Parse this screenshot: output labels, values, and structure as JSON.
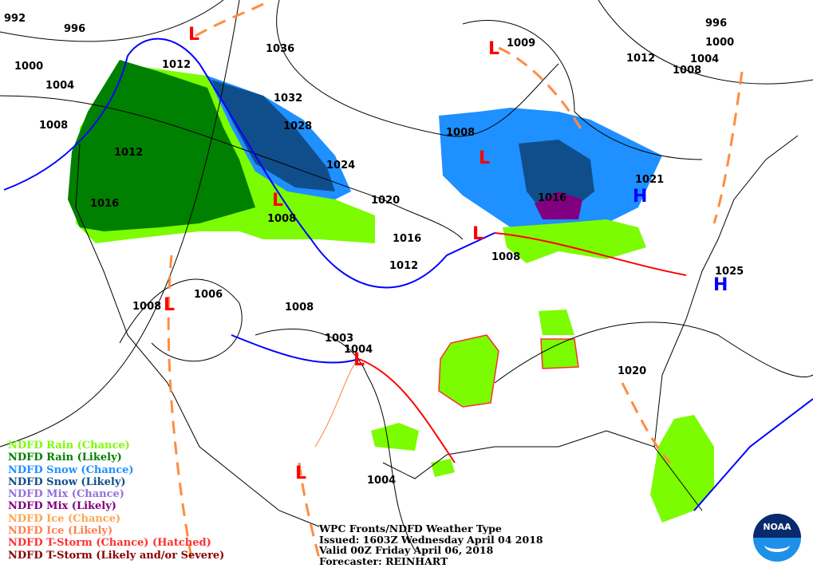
{
  "map_title": "WPC Fronts/NDFD Weather Type",
  "issued": "Issued: 1603Z Wednesday April 04 2018",
  "valid": "Valid 00Z Friday April 06, 2018",
  "forecaster": "Forecaster: REINHART",
  "logo": "NOAA",
  "legend": [
    {
      "label": "NDFD Rain (Chance)",
      "color": "#7cfc00"
    },
    {
      "label": "NDFD Rain (Likely)",
      "color": "#008000"
    },
    {
      "label": "NDFD Snow (Chance)",
      "color": "#1e90ff"
    },
    {
      "label": "NDFD Snow (Likely)",
      "color": "#104e8b"
    },
    {
      "label": "NDFD Mix (Chance)",
      "color": "#9370db"
    },
    {
      "label": "NDFD Mix (Likely)",
      "color": "#800080"
    },
    {
      "label": "NDFD Ice (Chance)",
      "color": "#ffa54f"
    },
    {
      "label": "NDFD Ice (Likely)",
      "color": "#ff7f50"
    },
    {
      "label": "NDFD T-Storm (Chance) (Hatched)",
      "color": "#ff3030"
    },
    {
      "label": "NDFD T-Storm (Likely and/or Severe)",
      "color": "#8b0000"
    }
  ],
  "isobar_labels": [
    "992",
    "996",
    "1000",
    "1004",
    "1008",
    "1012",
    "1012",
    "1016",
    "1036",
    "1032",
    "1028",
    "1024",
    "1020",
    "1016",
    "1012",
    "1008",
    "1006",
    "1008",
    "1008",
    "1003",
    "1004",
    "1004",
    "1008",
    "1008",
    "1009",
    "1012",
    "1016",
    "1021",
    "1025",
    "1020",
    "996",
    "1000",
    "1004",
    "1008"
  ],
  "pressure_centers": {
    "high": "H",
    "low": "L"
  }
}
